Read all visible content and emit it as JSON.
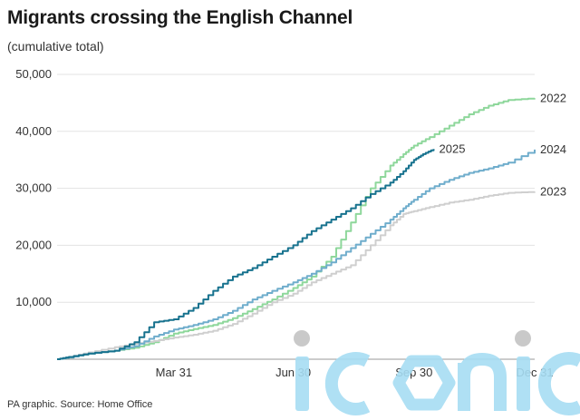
{
  "chart_data": {
    "type": "line",
    "title": "Migrants crossing the English Channel",
    "subtitle": "(cumulative total)",
    "xlabel": "",
    "ylabel": "",
    "x_unit": "day of year",
    "xlim": [
      1,
      365
    ],
    "ylim": [
      0,
      50000
    ],
    "y_ticks": [
      10000,
      20000,
      30000,
      40000,
      50000
    ],
    "y_tick_labels": [
      "10,000",
      "20,000",
      "30,000",
      "40,000",
      "50,000"
    ],
    "x_ticks": [
      {
        "day": 90,
        "label": "Mar 31"
      },
      {
        "day": 181,
        "label": "Jun 30"
      },
      {
        "day": 273,
        "label": "Sep 30"
      },
      {
        "day": 365,
        "label": "Dec 31"
      }
    ],
    "grid": "horizontal",
    "legend": "inline end labels",
    "series": [
      {
        "name": "2022",
        "color": "#8ed79b",
        "x": [
          1,
          10,
          25,
          45,
          60,
          75,
          90,
          105,
          120,
          135,
          150,
          165,
          181,
          195,
          210,
          225,
          240,
          255,
          265,
          273,
          285,
          300,
          315,
          330,
          345,
          365
        ],
        "y": [
          0,
          300,
          1000,
          1500,
          2000,
          3000,
          4500,
          5300,
          6000,
          7200,
          8800,
          10500,
          12500,
          14500,
          18000,
          24000,
          30000,
          34000,
          36000,
          37500,
          39000,
          41000,
          43000,
          44500,
          45500,
          45800
        ]
      },
      {
        "name": "2023",
        "color": "#cfcfcf",
        "x": [
          1,
          10,
          25,
          45,
          60,
          75,
          90,
          105,
          120,
          135,
          150,
          165,
          181,
          195,
          210,
          225,
          240,
          255,
          265,
          273,
          285,
          300,
          315,
          330,
          345,
          365
        ],
        "y": [
          0,
          400,
          1200,
          2100,
          2700,
          3200,
          3800,
          4300,
          5000,
          6200,
          8000,
          10000,
          11500,
          13500,
          15000,
          16500,
          20000,
          23500,
          25500,
          26000,
          26700,
          27500,
          28000,
          28700,
          29200,
          29400
        ]
      },
      {
        "name": "2024",
        "color": "#6fadcc",
        "x": [
          1,
          10,
          25,
          45,
          60,
          75,
          90,
          105,
          120,
          135,
          150,
          165,
          181,
          195,
          210,
          225,
          240,
          255,
          265,
          273,
          285,
          300,
          315,
          330,
          345,
          365
        ],
        "y": [
          0,
          300,
          1000,
          1500,
          2300,
          4000,
          5200,
          6000,
          7000,
          8500,
          10500,
          12000,
          13500,
          15000,
          17000,
          19500,
          22000,
          24500,
          26500,
          28000,
          30000,
          31500,
          32700,
          33500,
          34500,
          36800
        ]
      },
      {
        "name": "2025",
        "color": "#17728e",
        "x": [
          1,
          10,
          25,
          45,
          60,
          75,
          90,
          105,
          120,
          135,
          150,
          165,
          181,
          195,
          210,
          225,
          240,
          255,
          265,
          273,
          280,
          288
        ],
        "y": [
          0,
          400,
          1000,
          1500,
          3000,
          6500,
          7000,
          9000,
          12000,
          14500,
          16000,
          18000,
          20000,
          22500,
          24500,
          26500,
          29000,
          31000,
          33000,
          35000,
          36000,
          36900
        ]
      }
    ]
  },
  "footer": "PA graphic. Source: Home Office",
  "watermark": {
    "text": "iconic",
    "color": "#a7ddf3",
    "dot_color": "#c4c4c4"
  }
}
